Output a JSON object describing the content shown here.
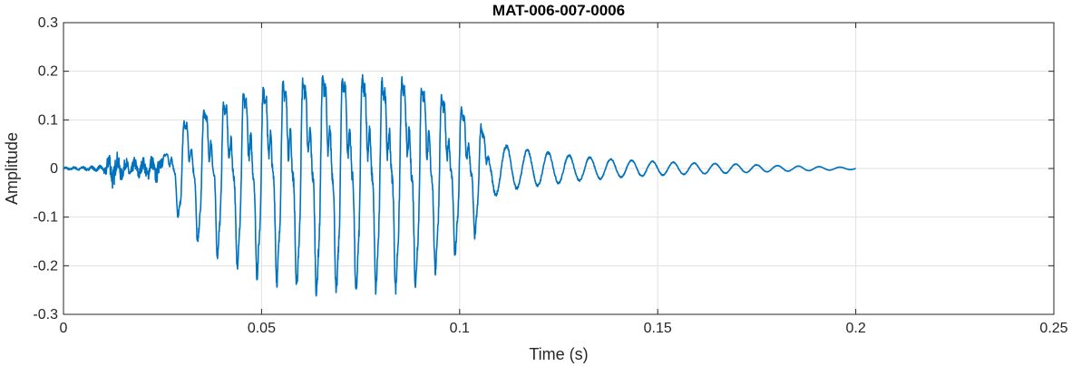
{
  "chart_data": {
    "type": "line",
    "title": "MAT-006-007-0006",
    "xlabel": "Time (s)",
    "ylabel": "Amplitude",
    "xlim": [
      0,
      0.25
    ],
    "ylim": [
      -0.3,
      0.3
    ],
    "xticks": [
      0,
      0.05,
      0.1,
      0.15,
      0.2,
      0.25
    ],
    "yticks": [
      -0.3,
      -0.2,
      -0.1,
      0,
      0.1,
      0.2,
      0.3
    ],
    "xtick_labels": [
      "0",
      "0.05",
      "0.1",
      "0.15",
      "0.2",
      "0.25"
    ],
    "ytick_labels": [
      "-0.3",
      "-0.2",
      "-0.1",
      "0",
      "0.1",
      "0.2",
      "0.3"
    ],
    "grid": true,
    "line_color": "#0072BD",
    "series": [
      {
        "x": [
          0,
          0.005,
          0.01,
          0.012,
          0.015,
          0.02,
          0.025,
          0.028,
          0.03,
          0.035,
          0.04,
          0.045,
          0.05,
          0.055,
          0.06,
          0.065,
          0.07,
          0.075,
          0.08,
          0.085,
          0.09,
          0.095,
          0.1,
          0.105,
          0.108,
          0.11,
          0.115,
          0.12,
          0.125,
          0.13,
          0.14,
          0.15,
          0.16,
          0.17,
          0.18,
          0.19,
          0.2
        ],
        "envelope": [
          0.003,
          0.004,
          0.006,
          0.04,
          0.02,
          0.02,
          0.03,
          0.07,
          0.12,
          0.15,
          0.17,
          0.19,
          0.21,
          0.22,
          0.23,
          0.24,
          0.24,
          0.24,
          0.23,
          0.23,
          0.22,
          0.19,
          0.16,
          0.12,
          0.06,
          0.05,
          0.04,
          0.035,
          0.03,
          0.025,
          0.018,
          0.014,
          0.011,
          0.009,
          0.006,
          0.004,
          0.002
        ]
      }
    ]
  }
}
